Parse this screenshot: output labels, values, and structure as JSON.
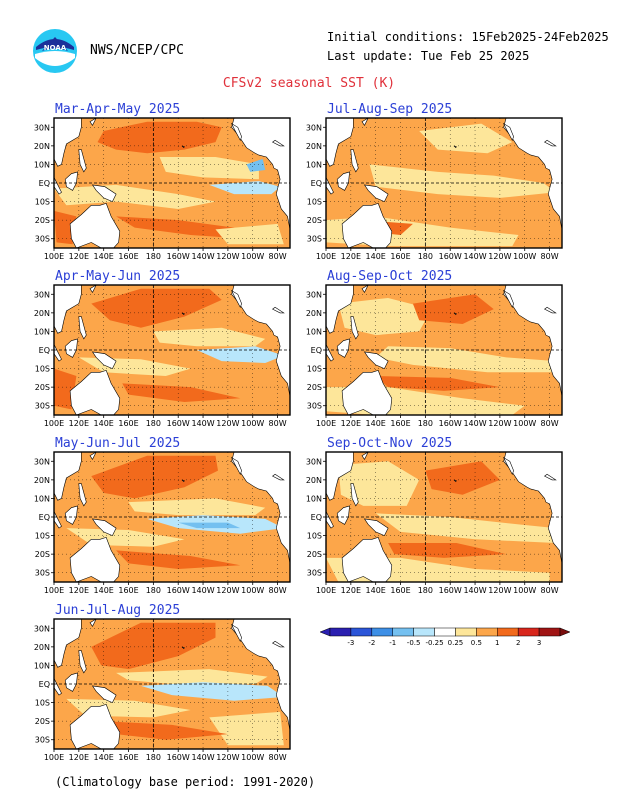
{
  "header": {
    "agency": "NWS/NCEP/CPC",
    "initial_conditions": "Initial conditions: 15Feb2025-24Feb2025",
    "last_update": "Last update: Tue Feb 25 2025",
    "title": "CFSv2 seasonal SST (K)",
    "logo_text": "NOAA"
  },
  "lon_ticks": [
    "100E",
    "120E",
    "140E",
    "160E",
    "180",
    "160W",
    "140W",
    "120W",
    "100W",
    "80W"
  ],
  "lat_ticks": [
    "30N",
    "20N",
    "10N",
    "EQ",
    "10S",
    "20S",
    "30S"
  ],
  "panels": [
    {
      "title": "Mar-Apr-May 2025",
      "pattern": "mam"
    },
    {
      "title": "Apr-May-Jun 2025",
      "pattern": "amj"
    },
    {
      "title": "May-Jun-Jul 2025",
      "pattern": "mjj"
    },
    {
      "title": "Jun-Jul-Aug 2025",
      "pattern": "jja"
    },
    {
      "title": "Jul-Aug-Sep 2025",
      "pattern": "jas"
    },
    {
      "title": "Aug-Sep-Oct 2025",
      "pattern": "aso"
    },
    {
      "title": "Sep-Oct-Nov 2025",
      "pattern": "son"
    }
  ],
  "colorbar": {
    "labels": [
      "-3",
      "-2",
      "-1",
      "-0.5",
      "-0.25",
      "0.25",
      "0.5",
      "1",
      "2",
      "3"
    ],
    "colors": [
      "#2a1fb0",
      "#2b55d8",
      "#3d8fe6",
      "#74c0f0",
      "#b8e6fb",
      "#ffffff",
      "#fde69a",
      "#fca64a",
      "#f26a1c",
      "#d8261c",
      "#a01414"
    ]
  },
  "colors": {
    "c_05": "#fde69a",
    "c_1": "#fca64a",
    "c_2": "#f26a1c",
    "c_3": "#d8261c",
    "cold_1": "#b8e6fb",
    "cold_2": "#74c0f0",
    "cold_3": "#3d8fe6",
    "land": "#ffffff",
    "title_red": "#e0303a",
    "panel_title_blue": "#2b3fd6"
  },
  "footer": "(Climatology base period: 1991-2020)"
}
